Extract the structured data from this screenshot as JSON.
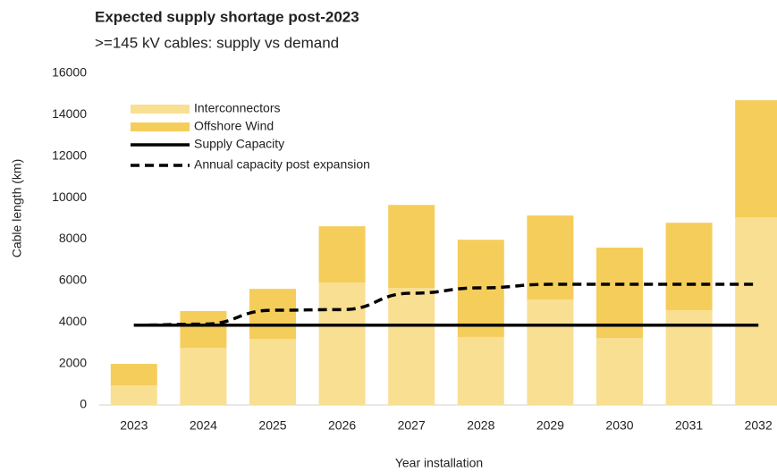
{
  "chart_data": {
    "type": "bar",
    "stacked": true,
    "title": "Expected supply shortage post-2023",
    "subtitle": ">=145 kV cables: supply vs demand",
    "x_label": "Year installation",
    "y_label": "Cable length (km)",
    "categories": [
      "2023",
      "2024",
      "2025",
      "2026",
      "2027",
      "2028",
      "2029",
      "2030",
      "2031",
      "2032"
    ],
    "series": [
      {
        "name": "Interconnectors",
        "type": "bar",
        "color": "#f8df92",
        "values": [
          950,
          2760,
          3190,
          5900,
          5650,
          3280,
          5090,
          3230,
          4570,
          9050
        ]
      },
      {
        "name": "Offshore Wind",
        "type": "bar",
        "color": "#f5cd5a",
        "values": [
          1030,
          1770,
          2410,
          2720,
          4000,
          4690,
          4050,
          4360,
          4220,
          5650
        ]
      },
      {
        "name": "Supply Capacity",
        "type": "line",
        "style": "solid",
        "color": "#000000",
        "values": [
          3850,
          3850,
          3850,
          3850,
          3850,
          3850,
          3850,
          3850,
          3850,
          3850
        ]
      },
      {
        "name": "Annual capacity post expansion",
        "type": "line",
        "style": "dashed",
        "color": "#000000",
        "values": [
          3850,
          3900,
          4570,
          4600,
          5390,
          5650,
          5820,
          5820,
          5820,
          5820
        ]
      }
    ],
    "ylim": [
      0,
      16000
    ],
    "yticks": [
      0,
      2000,
      4000,
      6000,
      8000,
      10000,
      12000,
      14000,
      16000
    ],
    "grid": false,
    "legend": "top-left"
  }
}
